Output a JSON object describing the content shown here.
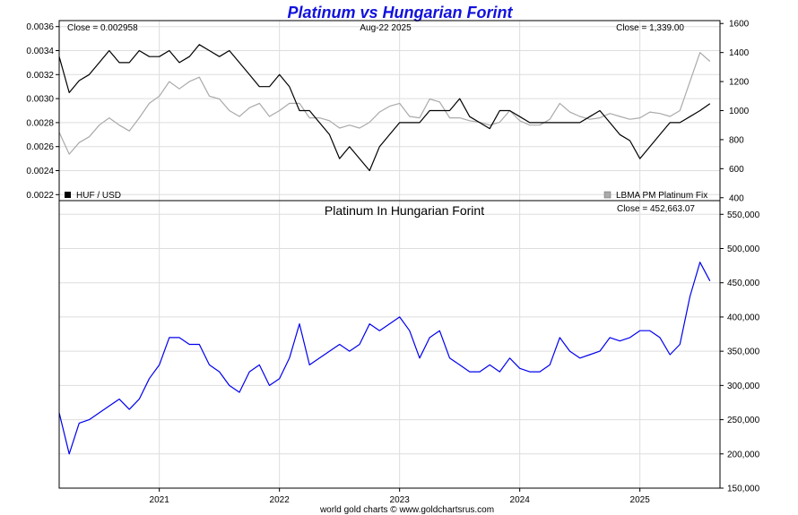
{
  "title": "Platinum vs Hungarian Forint",
  "footer": "world gold charts © www.goldchartsrus.com",
  "colors": {
    "title": "#1111dd",
    "huf_line": "#000000",
    "platinum_line": "#aaaaaa",
    "forint_platinum_line": "#0000ee",
    "grid": "#dddddd",
    "frame": "#000000"
  },
  "chart_data": [
    {
      "type": "line",
      "panel": "top",
      "date_label": "Aug-22  2025",
      "left_close": "Close = 0.002958",
      "right_close": "Close = 1,339.00",
      "grid": true,
      "x_tick_labels": [
        "2021",
        "2022",
        "2023",
        "2024",
        "2025"
      ],
      "xlim": [
        "2020-03",
        "2025-09"
      ],
      "y_left": {
        "lim": [
          0.00215,
          0.00365
        ],
        "ticks": [
          0.0022,
          0.0024,
          0.0026,
          0.0028,
          0.003,
          0.0032,
          0.0034,
          0.0036
        ],
        "tick_labels": [
          "0.0022",
          "0.0024",
          "0.0026",
          "0.0028",
          "0.0030",
          "0.0032",
          "0.0034",
          "0.0036"
        ]
      },
      "y_right": {
        "lim": [
          380,
          1620
        ],
        "ticks": [
          400,
          600,
          800,
          1000,
          1200,
          1400,
          1600
        ],
        "tick_labels": [
          "400",
          "600",
          "800",
          "1000",
          "1200",
          "1400",
          "1600"
        ]
      },
      "series": [
        {
          "name": "HUF / USD",
          "axis": "left",
          "x": [
            "2020-03",
            "2020-04",
            "2020-05",
            "2020-06",
            "2020-07",
            "2020-08",
            "2020-09",
            "2020-10",
            "2020-11",
            "2020-12",
            "2021-01",
            "2021-02",
            "2021-03",
            "2021-04",
            "2021-05",
            "2021-06",
            "2021-07",
            "2021-08",
            "2021-09",
            "2021-10",
            "2021-11",
            "2021-12",
            "2022-01",
            "2022-02",
            "2022-03",
            "2022-04",
            "2022-05",
            "2022-06",
            "2022-07",
            "2022-08",
            "2022-09",
            "2022-10",
            "2022-11",
            "2022-12",
            "2023-01",
            "2023-02",
            "2023-03",
            "2023-04",
            "2023-05",
            "2023-06",
            "2023-07",
            "2023-08",
            "2023-09",
            "2023-10",
            "2023-11",
            "2023-12",
            "2024-01",
            "2024-02",
            "2024-03",
            "2024-04",
            "2024-05",
            "2024-06",
            "2024-07",
            "2024-08",
            "2024-09",
            "2024-10",
            "2024-11",
            "2024-12",
            "2025-01",
            "2025-02",
            "2025-03",
            "2025-04",
            "2025-05",
            "2025-06",
            "2025-07",
            "2025-08"
          ],
          "values": [
            0.00335,
            0.00305,
            0.00315,
            0.0032,
            0.0033,
            0.0034,
            0.0033,
            0.0033,
            0.0034,
            0.00335,
            0.00335,
            0.0034,
            0.0033,
            0.00335,
            0.00345,
            0.0034,
            0.00335,
            0.0034,
            0.0033,
            0.0032,
            0.0031,
            0.0031,
            0.0032,
            0.0031,
            0.0029,
            0.0029,
            0.0028,
            0.0027,
            0.0025,
            0.0026,
            0.0025,
            0.0024,
            0.0026,
            0.0027,
            0.0028,
            0.0028,
            0.0028,
            0.0029,
            0.0029,
            0.0029,
            0.003,
            0.00285,
            0.0028,
            0.00275,
            0.0029,
            0.0029,
            0.00285,
            0.0028,
            0.0028,
            0.0028,
            0.0028,
            0.0028,
            0.0028,
            0.00285,
            0.0029,
            0.0028,
            0.0027,
            0.00265,
            0.0025,
            0.0026,
            0.0027,
            0.0028,
            0.0028,
            0.00285,
            0.0029,
            0.002958
          ]
        },
        {
          "name": "LBMA PM Platinum Fix",
          "axis": "right",
          "x": [
            "2020-03",
            "2020-04",
            "2020-05",
            "2020-06",
            "2020-07",
            "2020-08",
            "2020-09",
            "2020-10",
            "2020-11",
            "2020-12",
            "2021-01",
            "2021-02",
            "2021-03",
            "2021-04",
            "2021-05",
            "2021-06",
            "2021-07",
            "2021-08",
            "2021-09",
            "2021-10",
            "2021-11",
            "2021-12",
            "2022-01",
            "2022-02",
            "2022-03",
            "2022-04",
            "2022-05",
            "2022-06",
            "2022-07",
            "2022-08",
            "2022-09",
            "2022-10",
            "2022-11",
            "2022-12",
            "2023-01",
            "2023-02",
            "2023-03",
            "2023-04",
            "2023-05",
            "2023-06",
            "2023-07",
            "2023-08",
            "2023-09",
            "2023-10",
            "2023-11",
            "2023-12",
            "2024-01",
            "2024-02",
            "2024-03",
            "2024-04",
            "2024-05",
            "2024-06",
            "2024-07",
            "2024-08",
            "2024-09",
            "2024-10",
            "2024-11",
            "2024-12",
            "2025-01",
            "2025-02",
            "2025-03",
            "2025-04",
            "2025-05",
            "2025-06",
            "2025-07",
            "2025-08"
          ],
          "values": [
            850,
            700,
            780,
            820,
            900,
            950,
            900,
            860,
            950,
            1050,
            1100,
            1200,
            1150,
            1200,
            1230,
            1100,
            1080,
            1000,
            960,
            1020,
            1050,
            960,
            1000,
            1050,
            1050,
            950,
            950,
            930,
            880,
            900,
            880,
            920,
            990,
            1030,
            1050,
            960,
            950,
            1080,
            1060,
            950,
            950,
            930,
            920,
            900,
            920,
            1000,
            930,
            900,
            900,
            940,
            1050,
            990,
            960,
            940,
            950,
            980,
            960,
            940,
            950,
            990,
            980,
            960,
            1000,
            1200,
            1400,
            1339
          ]
        }
      ]
    },
    {
      "type": "line",
      "panel": "bottom",
      "title": "Platinum In Hungarian Forint",
      "close_label": "Close = 452,663.07",
      "grid": true,
      "x_tick_labels": [
        "2021",
        "2022",
        "2023",
        "2024",
        "2025"
      ],
      "xlim": [
        "2020-03",
        "2025-09"
      ],
      "y_right": {
        "lim": [
          150000,
          570000
        ],
        "ticks": [
          150000,
          200000,
          250000,
          300000,
          350000,
          400000,
          450000,
          500000,
          550000
        ],
        "tick_labels": [
          "150,000",
          "200,000",
          "250,000",
          "300,000",
          "350,000",
          "400,000",
          "450,000",
          "500,000",
          "550,000"
        ]
      },
      "series": [
        {
          "name": "",
          "axis": "right",
          "x": [
            "2020-03",
            "2020-04",
            "2020-05",
            "2020-06",
            "2020-07",
            "2020-08",
            "2020-09",
            "2020-10",
            "2020-11",
            "2020-12",
            "2021-01",
            "2021-02",
            "2021-03",
            "2021-04",
            "2021-05",
            "2021-06",
            "2021-07",
            "2021-08",
            "2021-09",
            "2021-10",
            "2021-11",
            "2021-12",
            "2022-01",
            "2022-02",
            "2022-03",
            "2022-04",
            "2022-05",
            "2022-06",
            "2022-07",
            "2022-08",
            "2022-09",
            "2022-10",
            "2022-11",
            "2022-12",
            "2023-01",
            "2023-02",
            "2023-03",
            "2023-04",
            "2023-05",
            "2023-06",
            "2023-07",
            "2023-08",
            "2023-09",
            "2023-10",
            "2023-11",
            "2023-12",
            "2024-01",
            "2024-02",
            "2024-03",
            "2024-04",
            "2024-05",
            "2024-06",
            "2024-07",
            "2024-08",
            "2024-09",
            "2024-10",
            "2024-11",
            "2024-12",
            "2025-01",
            "2025-02",
            "2025-03",
            "2025-04",
            "2025-05",
            "2025-06",
            "2025-07",
            "2025-08"
          ],
          "values": [
            260000,
            200000,
            245000,
            250000,
            260000,
            270000,
            280000,
            265000,
            280000,
            310000,
            330000,
            370000,
            370000,
            360000,
            360000,
            330000,
            320000,
            300000,
            290000,
            320000,
            330000,
            300000,
            310000,
            340000,
            390000,
            330000,
            340000,
            350000,
            360000,
            350000,
            360000,
            390000,
            380000,
            390000,
            400000,
            380000,
            340000,
            370000,
            380000,
            340000,
            330000,
            320000,
            320000,
            330000,
            320000,
            340000,
            325000,
            320000,
            320000,
            330000,
            370000,
            350000,
            340000,
            345000,
            350000,
            370000,
            365000,
            370000,
            380000,
            380000,
            370000,
            345000,
            360000,
            430000,
            480000,
            452663
          ]
        }
      ],
      "legend_entries": [
        "HUF / USD",
        "LBMA PM Platinum Fix"
      ]
    }
  ]
}
